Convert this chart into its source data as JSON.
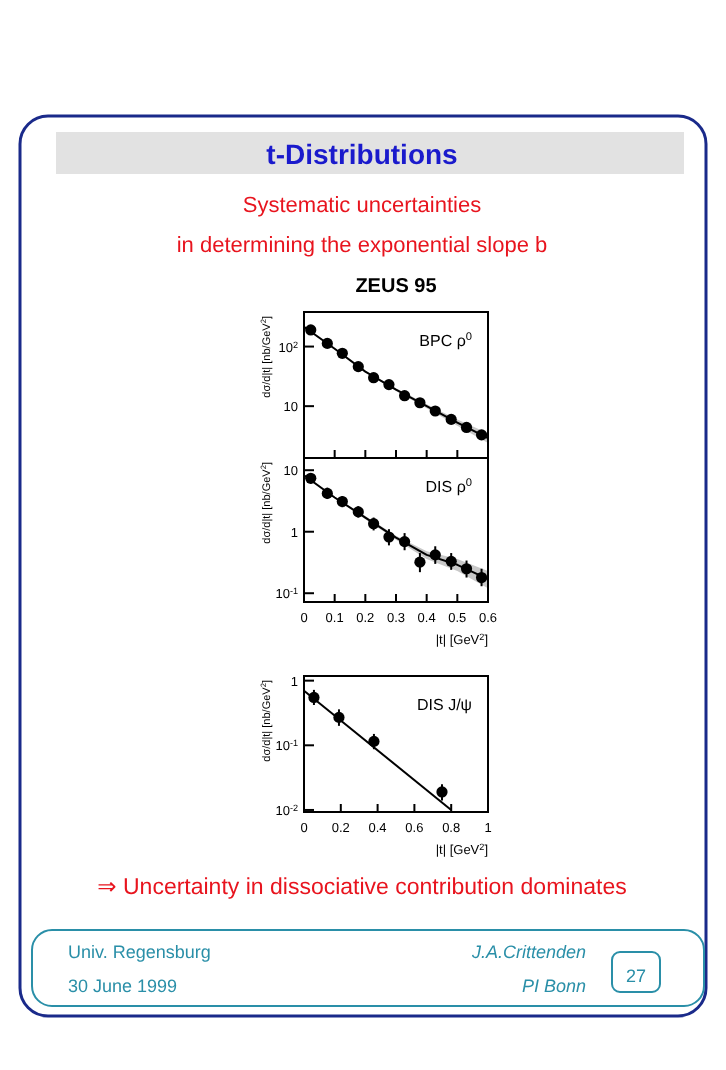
{
  "chart_data": [
    {
      "type": "other",
      "title": "t-Distributions",
      "annotations": [
        "Systematic uncertainties",
        "in determining the exponential slope b",
        "⇒ Uncertainty in dissociative contribution dominates",
        "Univ. Regensburg",
        "30 June 1999",
        "J.A.Crittenden",
        "PI Bonn",
        "27"
      ]
    },
    {
      "type": "scatter",
      "title": "ZEUS 95",
      "ylabel": "dσ/d|t| [nb/GeV$^{2}$]",
      "log": "y",
      "tick_labels": "y",
      "xlim": [
        0,
        0.6
      ],
      "xticks": [
        0,
        0.1,
        0.2,
        0.3,
        0.4,
        0.5,
        0.6
      ],
      "ylim": [
        1.35,
        380
      ],
      "yticks": [
        {
          "value": 10,
          "label": "10"
        },
        {
          "value": 100,
          "label": "10$^{2}$"
        }
      ],
      "annotations": [
        "BPC ρ$^{0}$"
      ],
      "series": [
        {
          "type": "scatter",
          "marker": "circle",
          "color": "#000000",
          "x": [
            0.022,
            0.076,
            0.125,
            0.177,
            0.227,
            0.277,
            0.328,
            0.378,
            0.428,
            0.48,
            0.53,
            0.579
          ],
          "values": [
            190,
            113,
            77,
            46,
            30,
            23,
            15,
            11.4,
            8.3,
            6.0,
            4.4,
            3.3
          ]
        },
        {
          "type": "line",
          "color": "#000000",
          "x": [
            0,
            0.1,
            0.2,
            0.3,
            0.4,
            0.5,
            0.6
          ],
          "values": [
            215,
            92,
            38,
            19,
            10,
            5.3,
            2.9
          ],
          "lower": [
            212,
            90,
            37,
            18,
            9.2,
            4.7,
            2.4
          ],
          "upper": [
            218,
            94,
            39,
            20,
            10.8,
            6.0,
            3.5
          ]
        }
      ]
    },
    {
      "type": "scatter",
      "xlabel": "|t| [GeV$^{2}$]",
      "ylabel": "dσ/d|t| [nb/GeV$^{2}$]",
      "log": "y",
      "xlim": [
        0,
        0.6
      ],
      "xticks": [
        0,
        0.1,
        0.2,
        0.3,
        0.4,
        0.5,
        0.6
      ],
      "ylim": [
        0.072,
        15.8
      ],
      "yticks": [
        {
          "value": 0.1,
          "label": "10$^{-1}$"
        },
        {
          "value": 1,
          "label": "1"
        },
        {
          "value": 10,
          "label": "10"
        }
      ],
      "annotations": [
        "DIS ρ$^{0}$"
      ],
      "series": [
        {
          "type": "scatter",
          "marker": "circle",
          "color": "#000000",
          "x": [
            0.022,
            0.076,
            0.125,
            0.177,
            0.227,
            0.277,
            0.328,
            0.378,
            0.428,
            0.48,
            0.53,
            0.579
          ],
          "values": [
            7.4,
            4.2,
            3.1,
            2.1,
            1.35,
            0.82,
            0.69,
            0.32,
            0.42,
            0.33,
            0.25,
            0.18
          ],
          "errors": [
            [
              6.0,
              9.0
            ],
            [
              3.4,
              5.2
            ],
            [
              2.5,
              3.8
            ],
            [
              1.7,
              2.6
            ],
            [
              1.05,
              1.7
            ],
            [
              0.6,
              1.1
            ],
            [
              0.5,
              0.95
            ],
            [
              0.22,
              0.45
            ],
            [
              0.3,
              0.58
            ],
            [
              0.24,
              0.45
            ],
            [
              0.18,
              0.34
            ],
            [
              0.13,
              0.25
            ]
          ]
        },
        {
          "type": "line",
          "color": "#000000",
          "x": [
            0,
            0.1,
            0.2,
            0.3,
            0.4,
            0.5,
            0.6
          ],
          "values": [
            8.3,
            3.6,
            1.7,
            0.8,
            0.42,
            0.29,
            0.17
          ],
          "lower": [
            8.1,
            3.5,
            1.6,
            0.74,
            0.36,
            0.23,
            0.12
          ],
          "upper": [
            8.5,
            3.7,
            1.8,
            0.86,
            0.48,
            0.36,
            0.23
          ]
        }
      ]
    },
    {
      "type": "scatter",
      "xlabel": "|t| [GeV$^{2}$]",
      "ylabel": "dσ/d|t| [nb/GeV$^{2}$]",
      "log": "y",
      "xlim": [
        0,
        1
      ],
      "xticks": [
        0,
        0.2,
        0.4,
        0.6,
        0.8,
        1
      ],
      "ylim": [
        0.0093,
        1.18
      ],
      "yticks": [
        {
          "value": 0.01,
          "label": "10$^{-2}$"
        },
        {
          "value": 0.1,
          "label": "10$^{-1}$"
        },
        {
          "value": 1,
          "label": "1"
        }
      ],
      "annotations": [
        "DIS J/ψ"
      ],
      "series": [
        {
          "type": "scatter",
          "marker": "circle",
          "color": "#000000",
          "x": [
            0.054,
            0.19,
            0.38,
            0.75
          ],
          "values": [
            0.55,
            0.27,
            0.115,
            0.019
          ],
          "errors": [
            [
              0.42,
              0.72
            ],
            [
              0.2,
              0.36
            ],
            [
              0.087,
              0.15
            ],
            [
              0.014,
              0.025
            ]
          ]
        },
        {
          "type": "line",
          "color": "#000000",
          "x": [
            0,
            0.8
          ],
          "values": [
            0.7,
            0.01
          ]
        }
      ]
    }
  ]
}
